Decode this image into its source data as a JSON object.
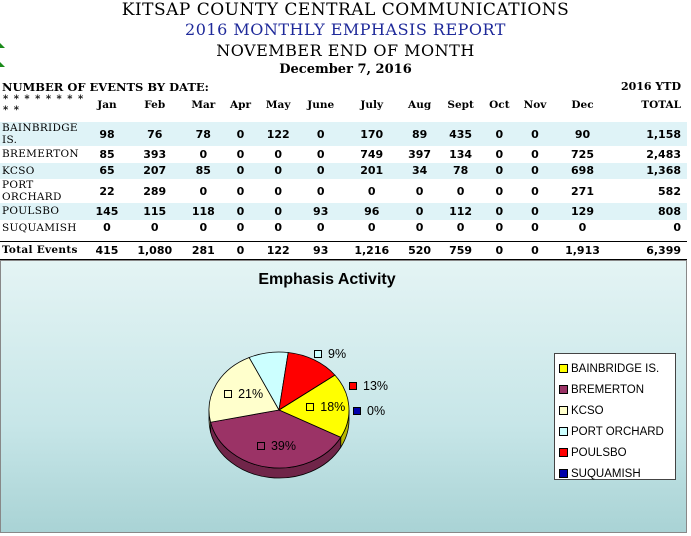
{
  "header": {
    "line1": "KITSAP COUNTY CENTRAL COMMUNICATIONS",
    "line2": "2016 MONTHLY EMPHASIS REPORT",
    "line3": "NOVEMBER END OF MONTH",
    "line4": "December 7, 2016"
  },
  "table": {
    "events_label": "NUMBER OF EVENTS BY DATE:",
    "ytd_label": "2016 YTD",
    "stars": "* * * * * * * * * *",
    "months": [
      "Jan",
      "Feb",
      "Mar",
      "Apr",
      "May",
      "June",
      "July",
      "Aug",
      "Sept",
      "Oct",
      "Nov",
      "Dec"
    ],
    "total_header": "TOTAL",
    "rows": [
      {
        "name": "BAINBRIDGE IS.",
        "values": [
          "98",
          "76",
          "78",
          "0",
          "122",
          "0",
          "170",
          "89",
          "435",
          "0",
          "0",
          "90"
        ],
        "total": "1,158"
      },
      {
        "name": "BREMERTON",
        "values": [
          "85",
          "393",
          "0",
          "0",
          "0",
          "0",
          "749",
          "397",
          "134",
          "0",
          "0",
          "725"
        ],
        "total": "2,483"
      },
      {
        "name": "KCSO",
        "values": [
          "65",
          "207",
          "85",
          "0",
          "0",
          "0",
          "201",
          "34",
          "78",
          "0",
          "0",
          "698"
        ],
        "total": "1,368"
      },
      {
        "name": "PORT ORCHARD",
        "values": [
          "22",
          "289",
          "0",
          "0",
          "0",
          "0",
          "0",
          "0",
          "0",
          "0",
          "0",
          "271"
        ],
        "total": "582"
      },
      {
        "name": "POULSBO",
        "values": [
          "145",
          "115",
          "118",
          "0",
          "0",
          "93",
          "96",
          "0",
          "112",
          "0",
          "0",
          "129"
        ],
        "total": "808"
      },
      {
        "name": "SUQUAMISH",
        "values": [
          "0",
          "0",
          "0",
          "0",
          "0",
          "0",
          "0",
          "0",
          "0",
          "0",
          "0",
          "0"
        ],
        "total": "0"
      }
    ],
    "total_row": {
      "name": "Total Events",
      "values": [
        "415",
        "1,080",
        "281",
        "0",
        "122",
        "93",
        "1,216",
        "520",
        "759",
        "0",
        "0",
        "1,913"
      ],
      "total": "6,399"
    }
  },
  "chart_data": {
    "type": "pie",
    "title": "Emphasis Activity",
    "labels": [
      "BAINBRIDGE IS.",
      "BREMERTON",
      "KCSO",
      "PORT ORCHARD",
      "POULSBO",
      "SUQUAMISH"
    ],
    "values": [
      1158,
      2483,
      1368,
      582,
      808,
      0
    ],
    "percent_labels": [
      "18%",
      "39%",
      "21%",
      "9%",
      "13%",
      "0%"
    ],
    "colors": [
      "#ffff00",
      "#9b3366",
      "#ffffcc",
      "#ccffff",
      "#ff0000",
      "#0000aa"
    ],
    "legend_position": "right"
  }
}
